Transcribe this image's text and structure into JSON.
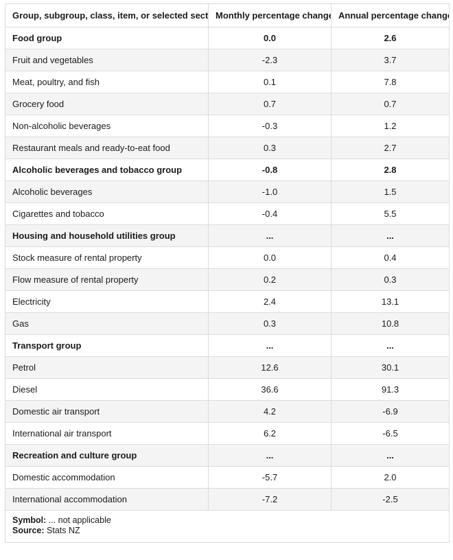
{
  "headers": [
    "Group, subgroup, class, item, or selected section",
    "Monthly percentage change",
    "Annual percentage change"
  ],
  "rows": [
    {
      "label": "Food group",
      "monthly": "0.0",
      "annual": "2.6",
      "bold": true
    },
    {
      "label": "Fruit and vegetables",
      "monthly": "-2.3",
      "annual": "3.7",
      "bold": false
    },
    {
      "label": "Meat, poultry, and fish",
      "monthly": "0.1",
      "annual": "7.8",
      "bold": false
    },
    {
      "label": "Grocery food",
      "monthly": "0.7",
      "annual": "0.7",
      "bold": false
    },
    {
      "label": "Non-alcoholic beverages",
      "monthly": "-0.3",
      "annual": "1.2",
      "bold": false
    },
    {
      "label": "Restaurant meals and ready-to-eat food",
      "monthly": "0.3",
      "annual": "2.7",
      "bold": false
    },
    {
      "label": "Alcoholic beverages and tobacco group",
      "monthly": "-0.8",
      "annual": "2.8",
      "bold": true
    },
    {
      "label": "Alcoholic beverages",
      "monthly": "-1.0",
      "annual": "1.5",
      "bold": false
    },
    {
      "label": "Cigarettes and tobacco",
      "monthly": "-0.4",
      "annual": "5.5",
      "bold": false
    },
    {
      "label": "Housing and household utilities group",
      "monthly": "...",
      "annual": "...",
      "bold": true
    },
    {
      "label": "Stock measure of rental property",
      "monthly": "0.0",
      "annual": "0.4",
      "bold": false
    },
    {
      "label": "Flow measure of rental property",
      "monthly": "0.2",
      "annual": "0.3",
      "bold": false
    },
    {
      "label": "Electricity",
      "monthly": "2.4",
      "annual": "13.1",
      "bold": false
    },
    {
      "label": "Gas",
      "monthly": "0.3",
      "annual": "10.8",
      "bold": false
    },
    {
      "label": "Transport group",
      "monthly": "...",
      "annual": "...",
      "bold": true
    },
    {
      "label": "Petrol",
      "monthly": "12.6",
      "annual": "30.1",
      "bold": false
    },
    {
      "label": "Diesel",
      "monthly": "36.6",
      "annual": "91.3",
      "bold": false
    },
    {
      "label": "Domestic air transport",
      "monthly": "4.2",
      "annual": "-6.9",
      "bold": false
    },
    {
      "label": "International air transport",
      "monthly": "6.2",
      "annual": "-6.5",
      "bold": false
    },
    {
      "label": "Recreation and culture group",
      "monthly": "...",
      "annual": "...",
      "bold": true
    },
    {
      "label": "Domestic accommodation",
      "monthly": "-5.7",
      "annual": "2.0",
      "bold": false
    },
    {
      "label": "International accommodation",
      "monthly": "-7.2",
      "annual": "-2.5",
      "bold": false
    }
  ],
  "footnote": {
    "symbol_key": "Symbol:",
    "symbol_text": " ... not applicable",
    "source_key": "Source:",
    "source_text": " Stats NZ"
  }
}
